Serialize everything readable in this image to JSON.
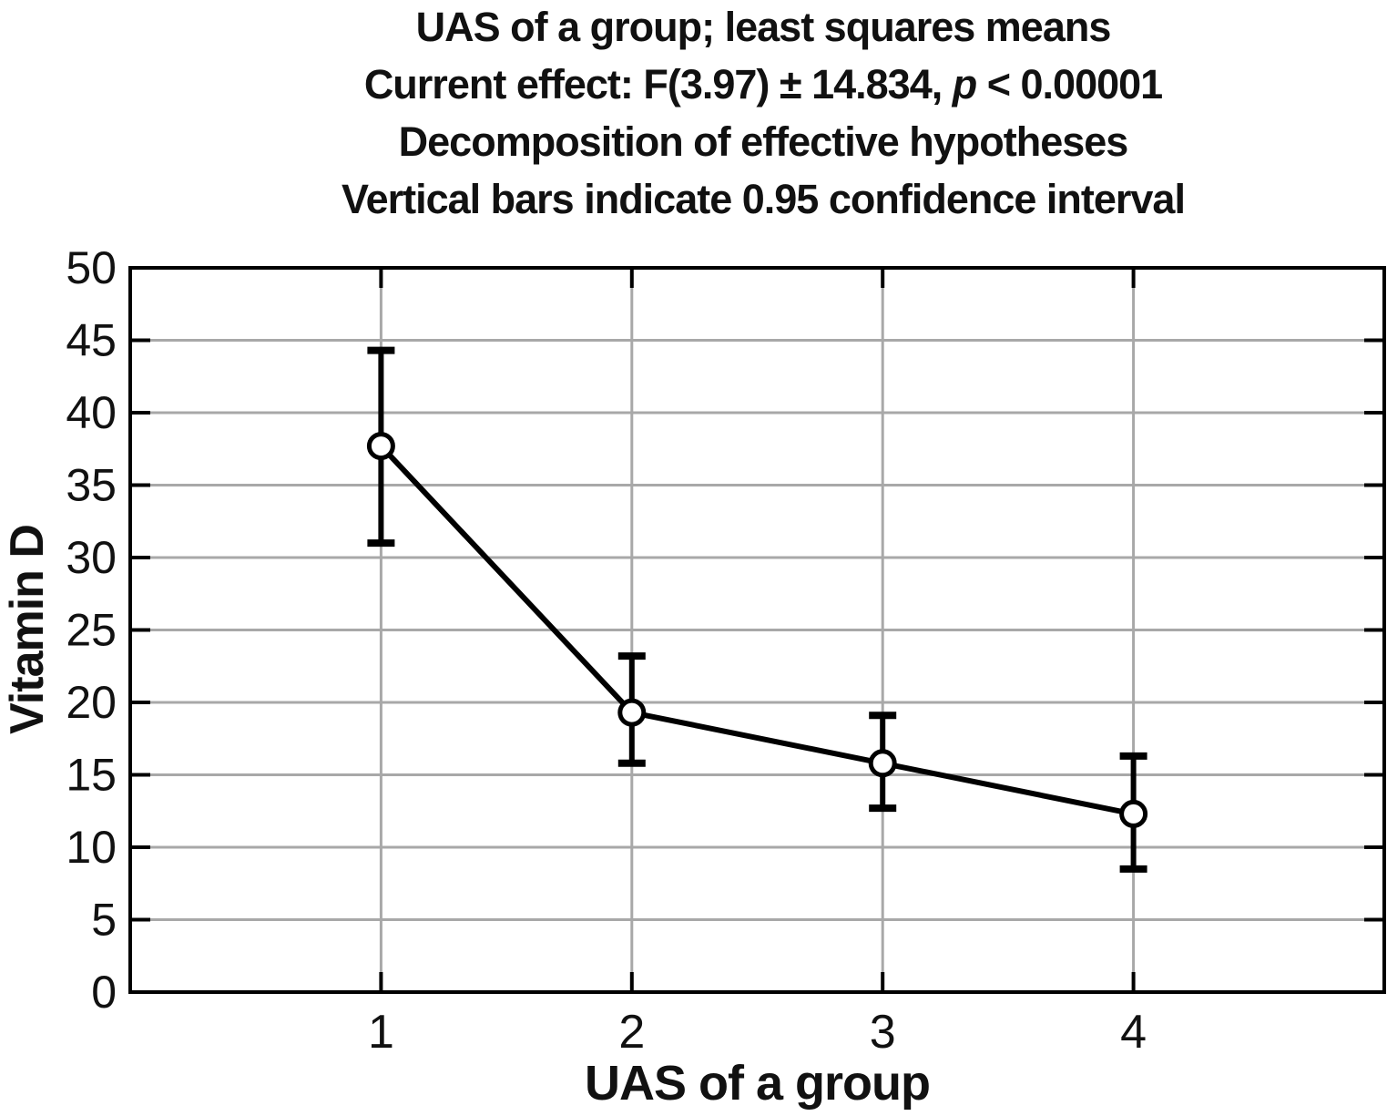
{
  "chart_data": {
    "type": "line",
    "title_lines": {
      "line1": "UAS of a group; least squares means",
      "line2_prefix": "Current effect: F(3.97) ± 14.834, ",
      "line2_italic": "p",
      "line2_suffix": " < 0.00001",
      "line3": "Decomposition of effective hypotheses",
      "line4": "Vertical bars indicate 0.95 confidence interval"
    },
    "xlabel": "UAS of a group",
    "ylabel": "Vitamin D",
    "categories": [
      "1",
      "2",
      "3",
      "4"
    ],
    "series": [
      {
        "name": "Vitamin D least squares mean",
        "values": [
          37.7,
          19.3,
          15.8,
          12.3
        ]
      }
    ],
    "ci_level": 0.95,
    "ci_lower": [
      31.0,
      15.8,
      12.7,
      8.5
    ],
    "ci_upper": [
      44.3,
      23.2,
      19.1,
      16.3
    ],
    "ylim": [
      0,
      50
    ],
    "yticks": [
      0,
      5,
      10,
      15,
      20,
      25,
      30,
      35,
      40,
      45,
      50
    ],
    "grid": true,
    "legend_position": "none",
    "marker": "open-circle",
    "colors": {
      "line": "#000000",
      "marker_stroke": "#000000",
      "marker_fill": "#ffffff",
      "grid": "#a8a8a8",
      "frame": "#000000",
      "text": "#111111"
    }
  }
}
